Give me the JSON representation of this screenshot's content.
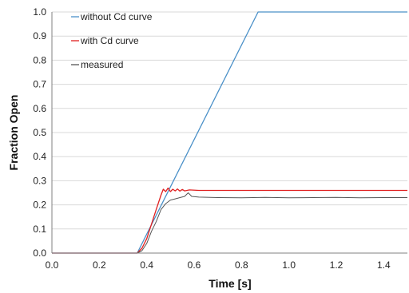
{
  "chart_data": {
    "type": "line",
    "title": "",
    "xlabel": "Time [s]",
    "ylabel": "Fraction Open",
    "xlim": [
      0,
      1.5
    ],
    "ylim": [
      0,
      1.0
    ],
    "x_ticks": [
      "0.0",
      "0.2",
      "0.4",
      "0.6",
      "0.8",
      "1.0",
      "1.2",
      "1.4"
    ],
    "y_ticks": [
      "0.0",
      "0.1",
      "0.2",
      "0.3",
      "0.4",
      "0.5",
      "0.6",
      "0.7",
      "0.8",
      "0.9",
      "1.0"
    ],
    "grid": true,
    "legend_position": "top-left",
    "series": [
      {
        "name": "without Cd curve",
        "color": "#4a90c8",
        "points": [
          [
            0,
            0
          ],
          [
            0.36,
            0
          ],
          [
            0.87,
            1.0
          ],
          [
            1.5,
            1.0
          ]
        ]
      },
      {
        "name": "with Cd curve",
        "color": "#e02020",
        "points": [
          [
            0,
            0
          ],
          [
            0.36,
            0
          ],
          [
            0.38,
            0.02
          ],
          [
            0.4,
            0.06
          ],
          [
            0.42,
            0.12
          ],
          [
            0.44,
            0.18
          ],
          [
            0.46,
            0.24
          ],
          [
            0.47,
            0.265
          ],
          [
            0.48,
            0.255
          ],
          [
            0.49,
            0.27
          ],
          [
            0.5,
            0.255
          ],
          [
            0.51,
            0.265
          ],
          [
            0.52,
            0.258
          ],
          [
            0.53,
            0.266
          ],
          [
            0.54,
            0.257
          ],
          [
            0.55,
            0.264
          ],
          [
            0.56,
            0.258
          ],
          [
            0.58,
            0.262
          ],
          [
            0.62,
            0.26
          ],
          [
            1.5,
            0.26
          ]
        ]
      },
      {
        "name": "measured",
        "color": "#555555",
        "points": [
          [
            0,
            0
          ],
          [
            0.36,
            0
          ],
          [
            0.38,
            0.01
          ],
          [
            0.4,
            0.04
          ],
          [
            0.42,
            0.09
          ],
          [
            0.44,
            0.13
          ],
          [
            0.46,
            0.18
          ],
          [
            0.48,
            0.205
          ],
          [
            0.5,
            0.22
          ],
          [
            0.52,
            0.225
          ],
          [
            0.54,
            0.23
          ],
          [
            0.56,
            0.235
          ],
          [
            0.575,
            0.25
          ],
          [
            0.59,
            0.235
          ],
          [
            0.62,
            0.232
          ],
          [
            0.7,
            0.23
          ],
          [
            0.8,
            0.229
          ],
          [
            0.9,
            0.231
          ],
          [
            1.0,
            0.229
          ],
          [
            1.1,
            0.23
          ],
          [
            1.2,
            0.231
          ],
          [
            1.3,
            0.229
          ],
          [
            1.4,
            0.23
          ],
          [
            1.5,
            0.23
          ]
        ]
      }
    ]
  }
}
